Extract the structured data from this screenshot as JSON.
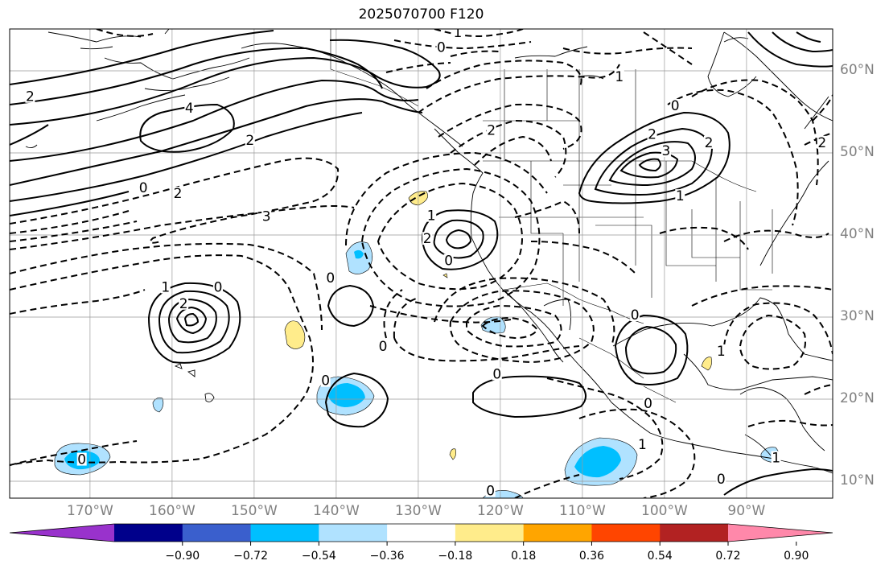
{
  "title": "2025070700 F120",
  "latitude_labels": [
    {
      "label": "60°N",
      "lat": 60
    },
    {
      "label": "50°N",
      "lat": 50
    },
    {
      "label": "40°N",
      "lat": 40
    },
    {
      "label": "30°N",
      "lat": 30
    },
    {
      "label": "20°N",
      "lat": 20
    },
    {
      "label": "10°N",
      "lat": 10
    }
  ],
  "longitude_labels": [
    {
      "label": "170°W",
      "lon": -170
    },
    {
      "label": "160°W",
      "lon": -160
    },
    {
      "label": "150°W",
      "lon": -150
    },
    {
      "label": "140°W",
      "lon": -140
    },
    {
      "label": "130°W",
      "lon": -130
    },
    {
      "label": "120°W",
      "lon": -120
    },
    {
      "label": "110°W",
      "lon": -110
    },
    {
      "label": "100°W",
      "lon": -100
    },
    {
      "label": "90°W",
      "lon": -90
    }
  ],
  "colorbar": {
    "ticks": [
      "−0.90",
      "−0.72",
      "−0.54",
      "−0.36",
      "−0.18",
      "0.18",
      "0.36",
      "0.54",
      "0.72",
      "0.90"
    ],
    "colors": [
      "#9932cc",
      "#00008b",
      "#3a5fcd",
      "#00bfff",
      "#b0e2ff",
      "#ffffff",
      "#ffec8b",
      "#ffa500",
      "#ff4500",
      "#b22222",
      "#ff88aa"
    ]
  },
  "contour_labels": [
    {
      "text": "1",
      "lon": -125.2,
      "lat": 64.2
    },
    {
      "text": "0",
      "lon": -127.2,
      "lat": 62.4
    },
    {
      "text": "1",
      "lon": -105.5,
      "lat": 58.8
    },
    {
      "text": "2",
      "lon": -177.3,
      "lat": 56.4
    },
    {
      "text": "4",
      "lon": -157.9,
      "lat": 55.0
    },
    {
      "text": "2",
      "lon": -150.5,
      "lat": 51.1
    },
    {
      "text": "0",
      "lon": -163.5,
      "lat": 45.3
    },
    {
      "text": "2",
      "lon": -121.1,
      "lat": 52.3
    },
    {
      "text": "2",
      "lon": -101.5,
      "lat": 51.8
    },
    {
      "text": "0",
      "lon": -98.7,
      "lat": 55.3
    },
    {
      "text": "3",
      "lon": -99.8,
      "lat": 49.8
    },
    {
      "text": "1",
      "lon": -98.1,
      "lat": 44.3
    },
    {
      "text": "2",
      "lon": -94.6,
      "lat": 50.8
    },
    {
      "text": "2",
      "lon": -80.8,
      "lat": 50.8
    },
    {
      "text": "3",
      "lon": -148.5,
      "lat": 41.8
    },
    {
      "text": "2",
      "lon": -159.3,
      "lat": 44.6
    },
    {
      "text": "1",
      "lon": -128.4,
      "lat": 41.9
    },
    {
      "text": "2",
      "lon": -128.9,
      "lat": 39.1
    },
    {
      "text": "0",
      "lon": -126.3,
      "lat": 36.4
    },
    {
      "text": "0",
      "lon": -140.7,
      "lat": 34.3
    },
    {
      "text": "0",
      "lon": -154.4,
      "lat": 33.2
    },
    {
      "text": "1",
      "lon": -160.8,
      "lat": 33.2
    },
    {
      "text": "2",
      "lon": -158.6,
      "lat": 31.2
    },
    {
      "text": "0",
      "lon": -134.3,
      "lat": 26.0
    },
    {
      "text": "0",
      "lon": -141.3,
      "lat": 21.8
    },
    {
      "text": "0",
      "lon": -120.4,
      "lat": 22.6
    },
    {
      "text": "0",
      "lon": -103.6,
      "lat": 29.8
    },
    {
      "text": "1",
      "lon": -93.1,
      "lat": 25.4
    },
    {
      "text": "0",
      "lon": -102.0,
      "lat": 19.0
    },
    {
      "text": "1",
      "lon": -102.7,
      "lat": 14.0
    },
    {
      "text": "0",
      "lon": -121.2,
      "lat": 8.4
    },
    {
      "text": "0",
      "lon": -93.1,
      "lat": 9.8
    },
    {
      "text": "0",
      "lon": -171.0,
      "lat": 12.2
    },
    {
      "text": "1",
      "lon": -86.4,
      "lat": 12.4
    }
  ]
}
